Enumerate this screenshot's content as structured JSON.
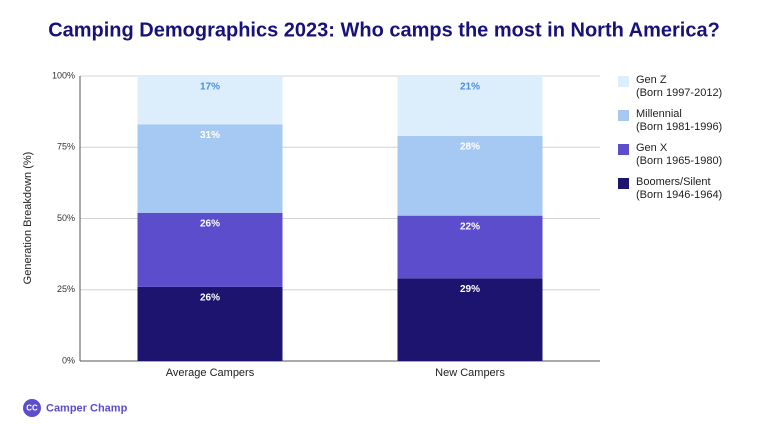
{
  "chart_data": {
    "type": "stacked_bar",
    "title": "Camping Demographics 2023: Who camps the most in North America?",
    "y_label": "Generation Breakdown (%)",
    "categories": [
      "Average Campers",
      "New Campers"
    ],
    "series": [
      {
        "name": "Boomers/Silent",
        "born": "(Born 1946-1964)",
        "color": "#1d1470",
        "label_color": "#ffffff",
        "values": [
          26,
          29
        ],
        "value_labels": [
          "26%",
          "29%"
        ]
      },
      {
        "name": "Gen X",
        "born": "(Born 1965-1980)",
        "color": "#5b4dcc",
        "label_color": "#ffffff",
        "values": [
          26,
          22
        ],
        "value_labels": [
          "26%",
          "22%"
        ]
      },
      {
        "name": "Millennial",
        "born": "(Born 1981-1996)",
        "color": "#a6c9f3",
        "label_color": "#ffffff",
        "values": [
          31,
          28
        ],
        "value_labels": [
          "31%",
          "28%"
        ]
      },
      {
        "name": "Gen Z",
        "born": "(Born 1997-2012)",
        "color": "#dcedfc",
        "label_color": "#4a8fdc",
        "values": [
          17,
          21
        ],
        "value_labels": [
          "17%",
          "21%"
        ]
      }
    ],
    "ylim": [
      0,
      100
    ],
    "yticks": [
      {
        "value": 0,
        "label": "0%"
      },
      {
        "value": 25,
        "label": "25%"
      },
      {
        "value": 50,
        "label": "50%"
      },
      {
        "value": 75,
        "label": "75%"
      },
      {
        "value": 100,
        "label": "100%"
      }
    ],
    "grid": true
  },
  "branding": {
    "icon": "CC",
    "name": "Camper Champ"
  }
}
